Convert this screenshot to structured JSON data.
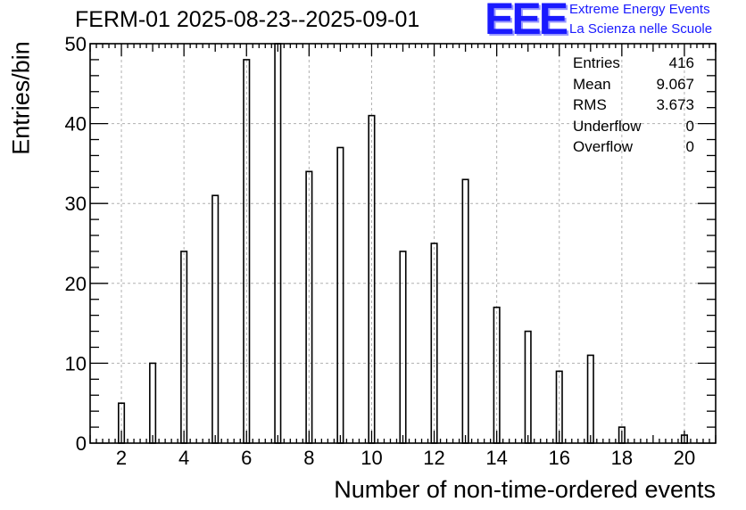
{
  "title": "FERM-01 2025-08-23--2025-09-01",
  "logo": {
    "mark": "EEE",
    "line1": "Extreme Energy Events",
    "line2": "La Scienza nelle Scuole",
    "color": "#1a1aff"
  },
  "stats": [
    {
      "label": "Entries",
      "value": "416"
    },
    {
      "label": "Mean",
      "value": "9.067"
    },
    {
      "label": "RMS",
      "value": "3.673"
    },
    {
      "label": "Underflow",
      "value": "0"
    },
    {
      "label": "Overflow",
      "value": "0"
    }
  ],
  "chart_data": {
    "type": "bar",
    "xlabel": "Number of non-time-ordered events",
    "ylabel": "Entries/bin",
    "xlim": [
      1,
      21
    ],
    "ylim": [
      0,
      50
    ],
    "grid": true,
    "x": [
      2,
      3,
      4,
      5,
      6,
      7,
      8,
      9,
      10,
      11,
      12,
      13,
      14,
      15,
      16,
      17,
      18,
      19,
      20
    ],
    "values": [
      5,
      10,
      24,
      31,
      48,
      50,
      34,
      37,
      41,
      24,
      25,
      33,
      17,
      14,
      9,
      11,
      2,
      0,
      1
    ],
    "xticks": [
      2,
      4,
      6,
      8,
      10,
      12,
      14,
      16,
      18,
      20
    ],
    "yticks": [
      0,
      10,
      20,
      30,
      40,
      50
    ]
  }
}
